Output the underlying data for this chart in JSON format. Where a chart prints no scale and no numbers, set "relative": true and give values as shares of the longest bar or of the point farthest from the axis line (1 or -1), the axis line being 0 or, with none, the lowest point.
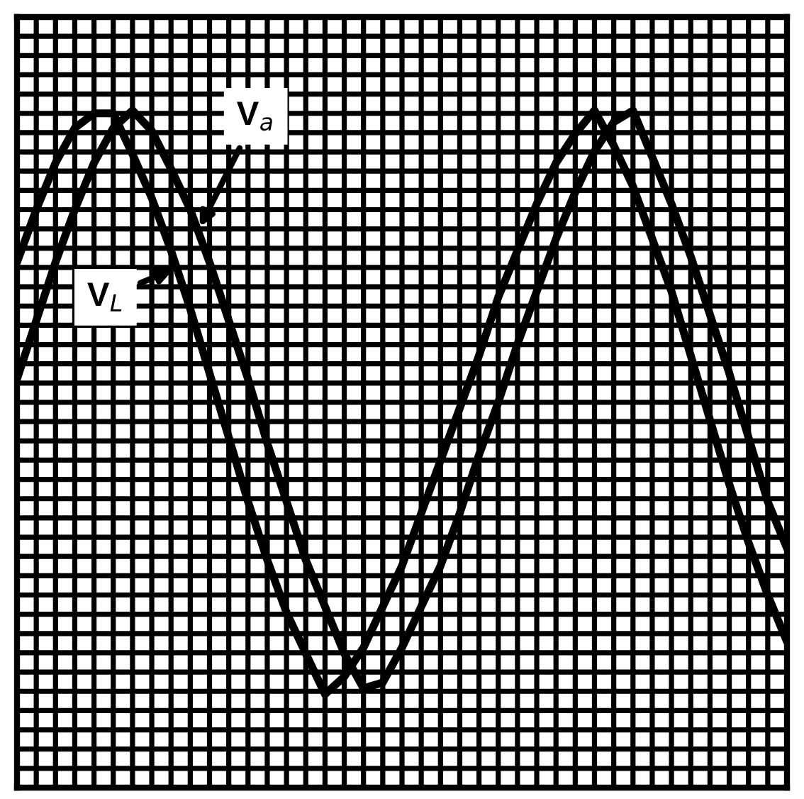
{
  "chart_data": {
    "type": "line",
    "relative": true,
    "grid": true,
    "line_style": "solid",
    "marker": "none",
    "categories": [
      null,
      null,
      null,
      null,
      null,
      null,
      null,
      null,
      null,
      null,
      null,
      null,
      null,
      null,
      null,
      null,
      null,
      null,
      null,
      null,
      null,
      null,
      null,
      null,
      null,
      null,
      null,
      null,
      null,
      null,
      null,
      null,
      null,
      null,
      null,
      null,
      null,
      null,
      null,
      null,
      null
    ],
    "series": [
      {
        "name": "V$_{a}$",
        "color": "#000000",
        "values": [
          0.54,
          0.64,
          0.74,
          0.83,
          0.91,
          0.97,
          1.0,
          0.965,
          0.9,
          0.83,
          0.74,
          0.64,
          0.54,
          0.43,
          0.33,
          0.23,
          0.15,
          0.07,
          0.01,
          0.02,
          0.08,
          0.15,
          0.22,
          0.31,
          0.41,
          0.5,
          0.6,
          0.69,
          0.78,
          0.86,
          0.93,
          0.98,
          1.0,
          0.92,
          0.84,
          0.75,
          0.65,
          0.55,
          0.44,
          0.33,
          0.25
        ]
      },
      {
        "name": "V$_{L}$",
        "color": "#000000",
        "values": [
          0.74,
          0.83,
          0.91,
          0.97,
          0.995,
          0.995,
          0.925,
          0.85,
          0.76,
          0.66,
          0.55,
          0.44,
          0.33,
          0.23,
          0.14,
          0.07,
          0.0,
          0.03,
          0.08,
          0.15,
          0.22,
          0.31,
          0.4,
          0.49,
          0.58,
          0.68,
          0.76,
          0.84,
          0.91,
          0.96,
          1.0,
          0.94,
          0.87,
          0.78,
          0.69,
          0.58,
          0.47,
          0.36,
          0.26,
          0.17,
          0.09
        ]
      }
    ]
  }
}
